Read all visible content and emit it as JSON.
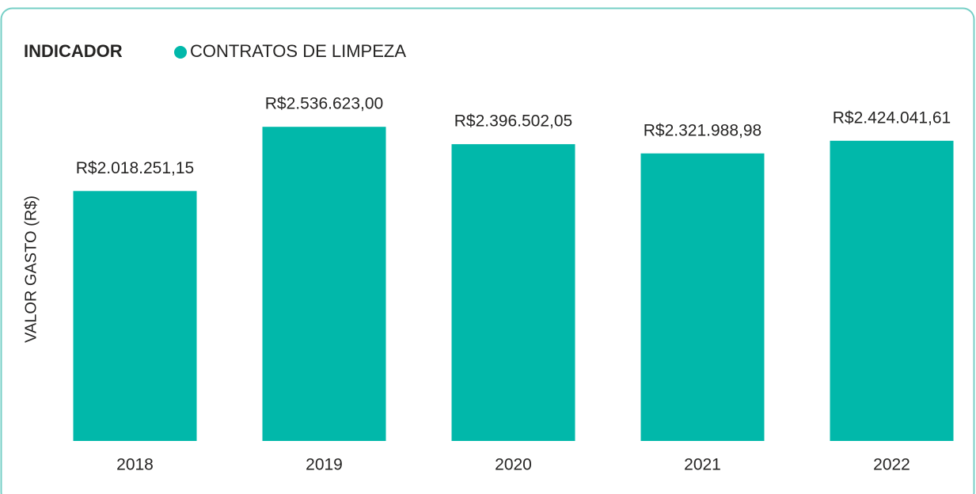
{
  "chart_data": {
    "type": "bar",
    "legend_title": "INDICADOR",
    "y_label": "VALOR GASTO (R$)",
    "categories": [
      "2018",
      "2019",
      "2020",
      "2021",
      "2022"
    ],
    "series": [
      {
        "name": "CONTRATOS DE LIMPEZA",
        "color": "#01b8aa",
        "values": [
          2018251.15,
          2536623.0,
          2396502.05,
          2321988.98,
          2424041.61
        ],
        "value_labels": [
          "R$2.018.251,15",
          "R$2.536.623,00",
          "R$2.396.502,05",
          "R$2.321.988,98",
          "R$2.424.041,61"
        ]
      }
    ],
    "ylim": [
      0,
      2800000
    ]
  }
}
